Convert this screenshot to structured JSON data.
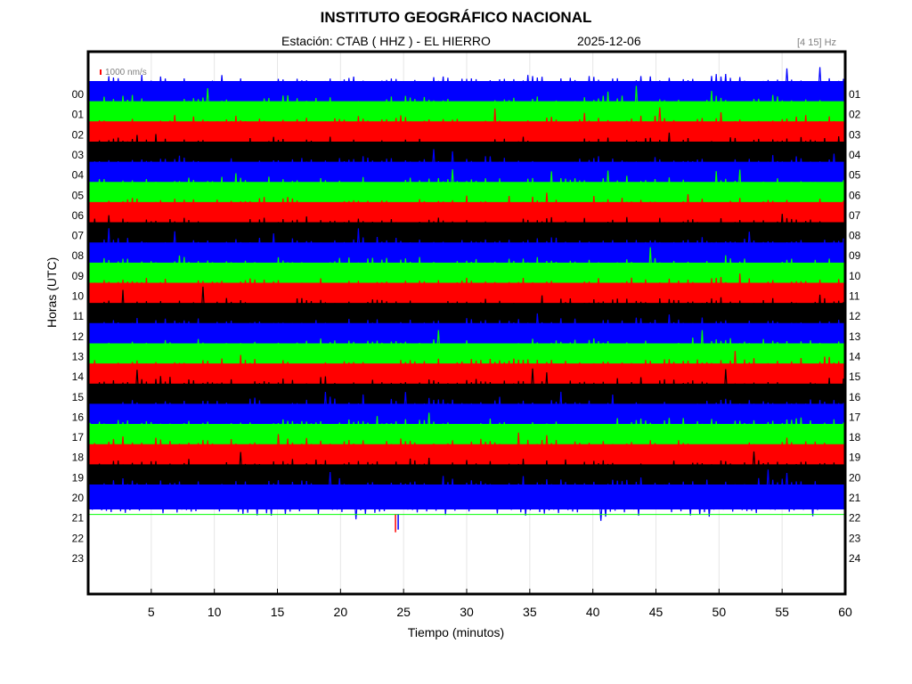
{
  "chart_data": {
    "type": "line",
    "title": "INSTITUTO GEOGRÁFICO NACIONAL",
    "station_label": "Estación:  CTAB ( HHZ ) - EL HIERRO",
    "date_label": "2025-12-06",
    "filter_label": "[4 15] Hz",
    "scale_label": "1000 nm/s",
    "xlabel": "Tiempo (minutos)",
    "ylabel": "Horas (UTC)",
    "xlim": [
      0,
      60
    ],
    "x_ticks": [
      "5",
      "10",
      "15",
      "20",
      "25",
      "30",
      "35",
      "40",
      "45",
      "50",
      "55",
      "60"
    ],
    "left_hours": [
      "00",
      "01",
      "02",
      "03",
      "04",
      "05",
      "06",
      "07",
      "08",
      "09",
      "10",
      "11",
      "12",
      "13",
      "14",
      "15",
      "16",
      "17",
      "18",
      "19",
      "20",
      "21",
      "22",
      "23"
    ],
    "right_hours": [
      "01",
      "02",
      "03",
      "04",
      "05",
      "06",
      "07",
      "08",
      "09",
      "10",
      "11",
      "12",
      "13",
      "14",
      "15",
      "16",
      "17",
      "18",
      "19",
      "20",
      "21",
      "22",
      "23",
      "24"
    ],
    "trace_colors": [
      "#0000ff",
      "#00ff00",
      "#ff0000",
      "#000000"
    ],
    "traces_complete": 21,
    "partial_trace": {
      "hour": "21",
      "minutes_recorded": 60,
      "color": "#00ff00"
    },
    "event_marker": {
      "hour": "21",
      "minute": 24.5
    },
    "grid": true
  }
}
